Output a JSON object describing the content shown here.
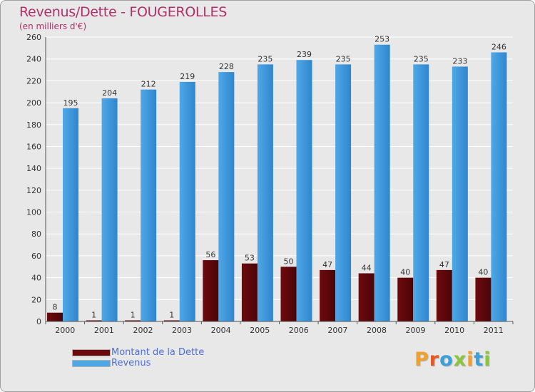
{
  "header": {
    "title": "Revenus/Dette - FOUGEROLLES",
    "subtitle": "(en milliers d'€)"
  },
  "colors": {
    "background": "#e8e8e8",
    "dette": "#6e0a0e",
    "revenus": "#4fa8e6",
    "title": "#b0306a",
    "legend_text": "#4f6fd8"
  },
  "legend": {
    "items": [
      {
        "label": "Montant de la Dette",
        "color": "#6e0a0e"
      },
      {
        "label": "Revenus",
        "color": "#4fa8e6"
      }
    ]
  },
  "logo": {
    "text": "Proxiti",
    "letter_colors": [
      "#f0a030",
      "#e05a2a",
      "#3aa0d8",
      "#8ac63c",
      "#f0a030",
      "#3aa0d8",
      "#8ac63c"
    ]
  },
  "chart_data": {
    "type": "bar",
    "title": "Revenus/Dette - FOUGEROLLES",
    "subtitle": "(en milliers d'€)",
    "categories": [
      "2000",
      "2001",
      "2002",
      "2003",
      "2004",
      "2005",
      "2006",
      "2007",
      "2008",
      "2009",
      "2010",
      "2011"
    ],
    "series": [
      {
        "name": "Montant de la Dette",
        "color": "#6e0a0e",
        "values": [
          8,
          1,
          1,
          1,
          56,
          53,
          50,
          47,
          44,
          40,
          47,
          40
        ]
      },
      {
        "name": "Revenus",
        "color": "#4fa8e6",
        "values": [
          195,
          204,
          212,
          219,
          228,
          235,
          239,
          235,
          253,
          235,
          233,
          246
        ]
      }
    ],
    "ylim": [
      0,
      260
    ],
    "yticks": [
      0,
      20,
      40,
      60,
      80,
      100,
      120,
      140,
      160,
      180,
      200,
      220,
      240,
      260
    ],
    "grid": true,
    "legend_position": "bottom-left"
  }
}
